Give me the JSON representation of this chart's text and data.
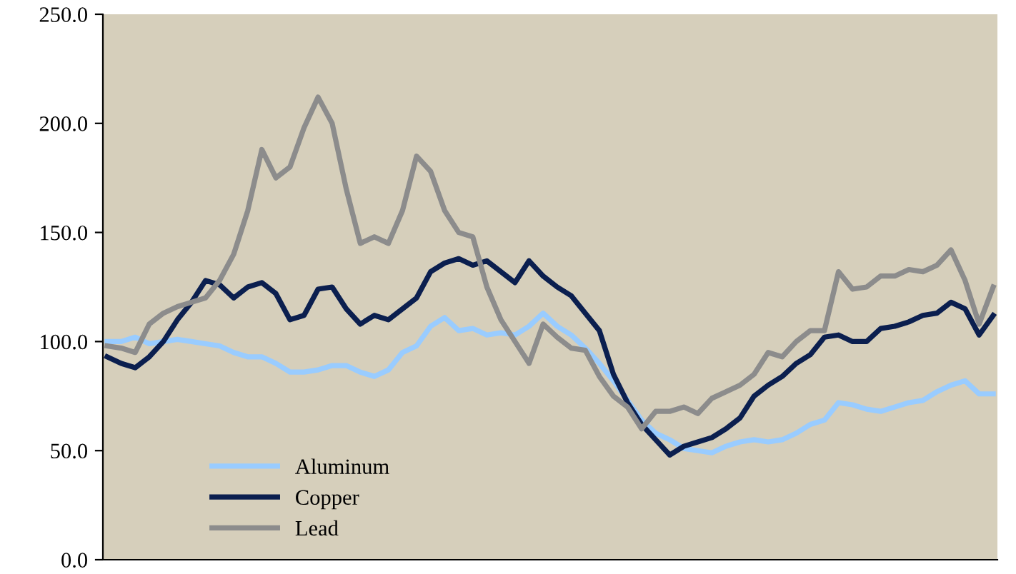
{
  "chart_data": {
    "type": "line",
    "categories": [
      null,
      null,
      null,
      null,
      null,
      null,
      null,
      null,
      null,
      null,
      null,
      null,
      null,
      null,
      null,
      null,
      null,
      null,
      null,
      null,
      null,
      null,
      null,
      null,
      null,
      null,
      null,
      null,
      null,
      null,
      null,
      null,
      null,
      null,
      null,
      null,
      null,
      null,
      null,
      null,
      null,
      null,
      null,
      null,
      null,
      null,
      null,
      null,
      null,
      null,
      null,
      null,
      null,
      null,
      null,
      null,
      null,
      null,
      null,
      null,
      null,
      null,
      null,
      null
    ],
    "series": [
      {
        "name": "Aluminum",
        "color": "#99ccff",
        "values": [
          100,
          100,
          102,
          99,
          100,
          101,
          100,
          99,
          98,
          95,
          93,
          93,
          90,
          86,
          86,
          87,
          89,
          89,
          86,
          84,
          87,
          95,
          98,
          107,
          111,
          105,
          106,
          103,
          104,
          103,
          107,
          113,
          107,
          103,
          97,
          90,
          82,
          73,
          64,
          58,
          55,
          51,
          50,
          49,
          52,
          54,
          55,
          54,
          55,
          58,
          62,
          64,
          72,
          71,
          69,
          68,
          70,
          72,
          73,
          77,
          80,
          82,
          76,
          76
        ]
      },
      {
        "name": "Copper",
        "color": "#0b1f4f",
        "values": [
          93,
          90,
          88,
          93,
          100,
          110,
          118,
          128,
          126,
          120,
          125,
          127,
          122,
          110,
          112,
          124,
          125,
          115,
          108,
          112,
          110,
          115,
          120,
          132,
          136,
          138,
          135,
          137,
          132,
          127,
          137,
          130,
          125,
          121,
          113,
          105,
          85,
          72,
          62,
          55,
          48,
          52,
          54,
          56,
          60,
          65,
          75,
          80,
          84,
          90,
          94,
          102,
          103,
          100,
          100,
          106,
          107,
          109,
          112,
          113,
          118,
          115,
          103,
          112
        ]
      },
      {
        "name": "Lead",
        "color": "#8c8c8c",
        "values": [
          98,
          97,
          95,
          108,
          113,
          116,
          118,
          120,
          128,
          140,
          160,
          188,
          175,
          180,
          198,
          212,
          200,
          170,
          145,
          148,
          145,
          160,
          185,
          178,
          160,
          150,
          148,
          125,
          110,
          100,
          90,
          108,
          102,
          97,
          96,
          84,
          75,
          70,
          60,
          68,
          68,
          70,
          67,
          74,
          77,
          80,
          85,
          95,
          93,
          100,
          105,
          105,
          132,
          124,
          125,
          130,
          130,
          133,
          132,
          135,
          142,
          128,
          108,
          125
        ]
      }
    ],
    "ylim": [
      0,
      250
    ],
    "yticks": [
      {
        "value": 0,
        "label": "0.0"
      },
      {
        "value": 50,
        "label": "50.0"
      },
      {
        "value": 100,
        "label": "100.0"
      },
      {
        "value": 150,
        "label": "150.0"
      },
      {
        "value": 200,
        "label": "200.0"
      },
      {
        "value": 250,
        "label": "250.0"
      }
    ],
    "tick_labels": "y",
    "legend": "bottom left",
    "line_style": "solid",
    "marker": "none"
  }
}
